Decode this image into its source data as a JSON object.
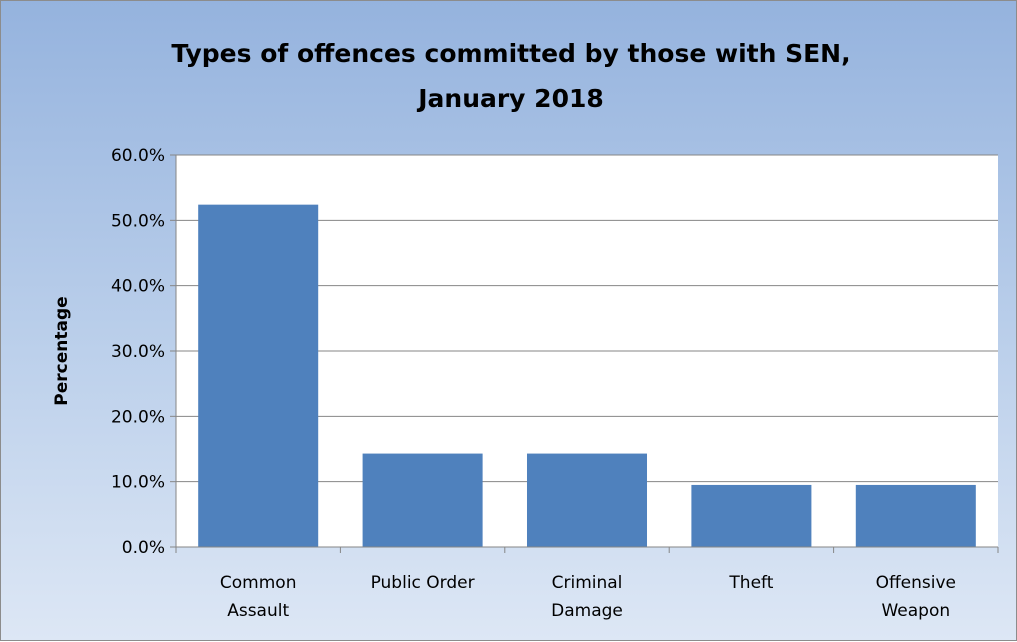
{
  "chart_data": {
    "type": "bar",
    "title": [
      "Types of offences committed by those with SEN,",
      "January 2018"
    ],
    "xlabel": "",
    "ylabel": "Percentage",
    "categories": [
      [
        "Common",
        "Assault"
      ],
      [
        "Public Order"
      ],
      [
        "Criminal",
        "Damage"
      ],
      [
        "Theft"
      ],
      [
        "Offensive",
        "Weapon"
      ]
    ],
    "values": [
      52.4,
      14.3,
      14.3,
      9.5,
      9.5
    ],
    "ylim": [
      0,
      60
    ],
    "yticks": [
      "0.0%",
      "10.0%",
      "20.0%",
      "30.0%",
      "40.0%",
      "50.0%",
      "60.0%"
    ],
    "grid": true,
    "legend": "none",
    "colors": {
      "bar": "#4f81bd",
      "plot_bg": "#ffffff",
      "gridline": "#868686"
    }
  }
}
